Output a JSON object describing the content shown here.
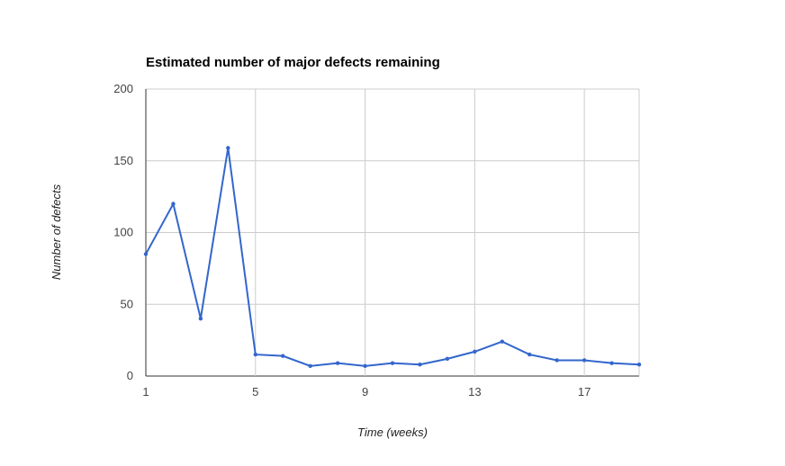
{
  "chart_data": {
    "type": "line",
    "title": "Estimated number of major defects remaining",
    "xlabel": "Time (weeks)",
    "ylabel": "Number of defects",
    "x": [
      1,
      2,
      3,
      4,
      5,
      6,
      7,
      8,
      9,
      10,
      11,
      12,
      13,
      14,
      15,
      16,
      17,
      18,
      19
    ],
    "series": [
      {
        "values": [
          85,
          120,
          40,
          159,
          15,
          14,
          7,
          9,
          7,
          9,
          8,
          12,
          17,
          24,
          15,
          11,
          11,
          9,
          8
        ]
      }
    ],
    "xlim": [
      1,
      19
    ],
    "ylim": [
      0,
      200
    ],
    "xticks": [
      "1",
      "5",
      "9",
      "13",
      "17"
    ],
    "yticks": [
      "0",
      "50",
      "100",
      "150",
      "200"
    ],
    "grid": true,
    "legend": "none",
    "colors": {
      "series": "#3366cc",
      "grid": "#cccccc",
      "axis": "#333333"
    }
  }
}
